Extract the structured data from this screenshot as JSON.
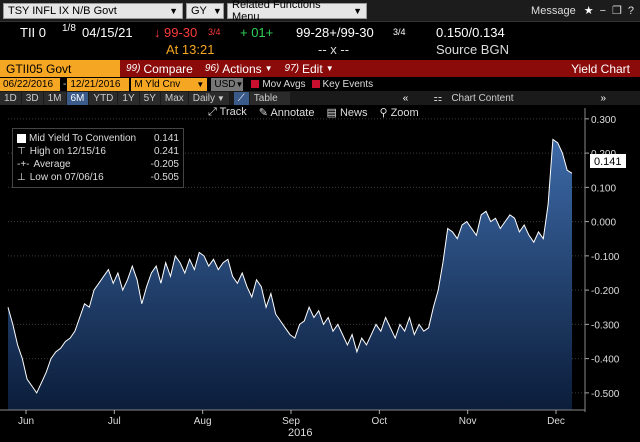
{
  "top_bar": {
    "security": "TSY INFL IX N/B Govt",
    "gy": "GY",
    "related": "Related Functions Menu",
    "message": "Message"
  },
  "quote": {
    "ticker": "TII 0",
    "frac": "1/8",
    "date": "04/15/21",
    "arrow": "↓",
    "price": "99-30",
    "price_frac": "3/4",
    "at_time": "At 13:21",
    "change": "+ 01+",
    "bid_ask": "99-28+/99-30",
    "bid_ask_frac": "3/4",
    "yields": "0.150/0.134",
    "dashes": "-- x --",
    "source": "Source BGN"
  },
  "menu": {
    "code": "GTII05 Govt",
    "compare_num": "99)",
    "compare": "Compare",
    "actions_num": "96)",
    "actions": "Actions",
    "edit_num": "97)",
    "edit": "Edit",
    "title": "Yield Chart"
  },
  "params": {
    "start": "06/22/2016",
    "end": "12/21/2016",
    "field": "M Yld Cnv",
    "currency": "USD",
    "mov_avgs": "Mov Avgs",
    "key_events": "Key Events"
  },
  "periods": [
    "1D",
    "3D",
    "1M",
    "6M",
    "YTD",
    "1Y",
    "5Y",
    "Max"
  ],
  "selected_period": "6M",
  "frequency": "Daily",
  "table_label": "Table",
  "chart_content": "Chart Content",
  "tools": {
    "track": "Track",
    "annotate": "Annotate",
    "news": "News",
    "zoom": "Zoom"
  },
  "legend": {
    "series": "Mid Yield To Convention",
    "last": "0.141",
    "high_label": "High on 12/15/16",
    "high": "0.241",
    "avg_label": "Average",
    "avg": "-0.205",
    "low_label": "Low on 07/06/16",
    "low": "-0.505"
  },
  "colors": {
    "accent_orange": "#f5a623",
    "menu_red": "#8b0a0a",
    "up_green": "#31d158",
    "down_red": "#ff3b3b",
    "area_top": "#3d6aa8",
    "area_bottom": "#0b1d3a"
  },
  "chart_data": {
    "type": "area",
    "title": "",
    "xlabel": "2016",
    "ylabel": "",
    "ylim": [
      -0.55,
      0.32
    ],
    "y_ticks": [
      "0.300",
      "0.200",
      "0.100",
      "0.000",
      "-0.100",
      "-0.200",
      "-0.300",
      "-0.400",
      "-0.500"
    ],
    "x_ticks": [
      "Jun",
      "Jul",
      "Aug",
      "Sep",
      "Oct",
      "Nov",
      "Dec"
    ],
    "last_value_label": "0.141",
    "series": [
      {
        "name": "Mid Yield To Convention",
        "values": [
          -0.25,
          -0.3,
          -0.36,
          -0.4,
          -0.46,
          -0.48,
          -0.5,
          -0.47,
          -0.44,
          -0.4,
          -0.38,
          -0.37,
          -0.35,
          -0.34,
          -0.32,
          -0.28,
          -0.24,
          -0.25,
          -0.2,
          -0.18,
          -0.16,
          -0.14,
          -0.18,
          -0.15,
          -0.2,
          -0.17,
          -0.13,
          -0.17,
          -0.24,
          -0.19,
          -0.15,
          -0.13,
          -0.18,
          -0.12,
          -0.16,
          -0.1,
          -0.12,
          -0.15,
          -0.11,
          -0.14,
          -0.09,
          -0.1,
          -0.13,
          -0.11,
          -0.14,
          -0.12,
          -0.11,
          -0.16,
          -0.18,
          -0.15,
          -0.19,
          -0.22,
          -0.17,
          -0.19,
          -0.25,
          -0.21,
          -0.27,
          -0.29,
          -0.31,
          -0.33,
          -0.34,
          -0.3,
          -0.29,
          -0.25,
          -0.28,
          -0.26,
          -0.3,
          -0.28,
          -0.32,
          -0.3,
          -0.33,
          -0.36,
          -0.33,
          -0.38,
          -0.34,
          -0.36,
          -0.33,
          -0.3,
          -0.32,
          -0.28,
          -0.31,
          -0.34,
          -0.3,
          -0.32,
          -0.28,
          -0.33,
          -0.3,
          -0.32,
          -0.31,
          -0.25,
          -0.2,
          -0.12,
          -0.02,
          -0.03,
          -0.05,
          -0.01,
          0.0,
          -0.02,
          -0.04,
          0.02,
          0.03,
          0.0,
          0.01,
          -0.02,
          0.0,
          0.02,
          0.01,
          -0.03,
          -0.01,
          -0.04,
          -0.06,
          -0.03,
          -0.05,
          0.05,
          0.24,
          0.23,
          0.2,
          0.15,
          0.141
        ]
      }
    ]
  }
}
